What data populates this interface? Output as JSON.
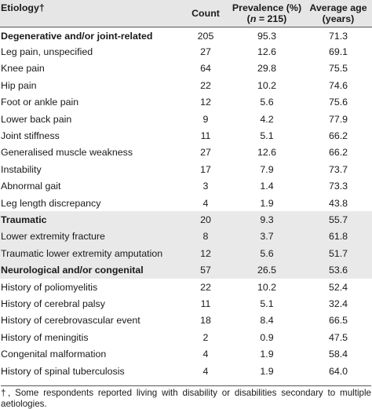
{
  "header": {
    "etiology": "Etiology†",
    "count": "Count",
    "prevalence_line1": "Prevalence (%)",
    "prevalence_n_prefix": "(",
    "prevalence_n_var": "n",
    "prevalence_n_suffix": " = 215)",
    "age_line1": "Average age",
    "age_line2": "(years)"
  },
  "rows": [
    {
      "label": "Degenerative and/or joint-related",
      "count": "205",
      "prevalence": "95.3",
      "age": "71.3",
      "group": true
    },
    {
      "label": "Leg pain, unspecified",
      "count": "27",
      "prevalence": "12.6",
      "age": "69.1",
      "group": false
    },
    {
      "label": "Knee pain",
      "count": "64",
      "prevalence": "29.8",
      "age": "75.5",
      "group": false
    },
    {
      "label": "Hip pain",
      "count": "22",
      "prevalence": "10.2",
      "age": "74.6",
      "group": false
    },
    {
      "label": "Foot or ankle pain",
      "count": "12",
      "prevalence": "5.6",
      "age": "75.6",
      "group": false
    },
    {
      "label": "Lower back pain",
      "count": "9",
      "prevalence": "4.2",
      "age": "77.9",
      "group": false
    },
    {
      "label": "Joint stiffness",
      "count": "11",
      "prevalence": "5.1",
      "age": "66.2",
      "group": false
    },
    {
      "label": "Generalised muscle weakness",
      "count": "27",
      "prevalence": "12.6",
      "age": "66.2",
      "group": false
    },
    {
      "label": "Instability",
      "count": "17",
      "prevalence": "7.9",
      "age": "73.7",
      "group": false
    },
    {
      "label": "Abnormal gait",
      "count": "3",
      "prevalence": "1.4",
      "age": "73.3",
      "group": false
    },
    {
      "label": "Leg length discrepancy",
      "count": "4",
      "prevalence": "1.9",
      "age": "43.8",
      "group": false
    },
    {
      "label": "Traumatic",
      "count": "20",
      "prevalence": "9.3",
      "age": "55.7",
      "group": true
    },
    {
      "label": "Lower extremity fracture",
      "count": "8",
      "prevalence": "3.7",
      "age": "61.8",
      "group": false
    },
    {
      "label": "Traumatic lower extremity amputation",
      "count": "12",
      "prevalence": "5.6",
      "age": "51.7",
      "group": false
    },
    {
      "label": "Neurological and/or congenital",
      "count": "57",
      "prevalence": "26.5",
      "age": "53.6",
      "group": true
    },
    {
      "label": "History of poliomyelitis",
      "count": "22",
      "prevalence": "10.2",
      "age": "52.4",
      "group": false
    },
    {
      "label": "History of cerebral palsy",
      "count": "11",
      "prevalence": "5.1",
      "age": "32.4",
      "group": false
    },
    {
      "label": "History of cerebrovascular event",
      "count": "18",
      "prevalence": "8.4",
      "age": "66.5",
      "group": false
    },
    {
      "label": "History of meningitis",
      "count": "2",
      "prevalence": "0.9",
      "age": "47.5",
      "group": false
    },
    {
      "label": "Congenital malformation",
      "count": "4",
      "prevalence": "1.9",
      "age": "58.4",
      "group": false
    },
    {
      "label": "History of spinal tuberculosis",
      "count": "4",
      "prevalence": "1.9",
      "age": "64.0",
      "group": false
    }
  ],
  "footnote": "†, Some respondents reported living with disability or disabilities secondary to multiple aetiologies."
}
